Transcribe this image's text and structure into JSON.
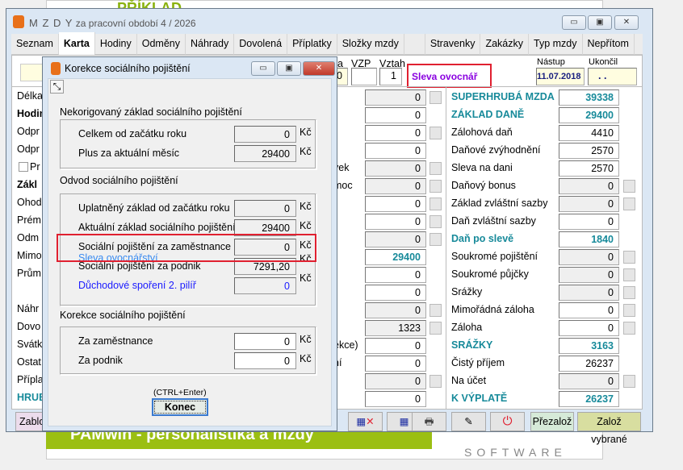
{
  "background": {
    "title": "PŘÍKLAD",
    "banner": "PAMwin - personalistika a mzdy",
    "logo_text": "SOFTWARE"
  },
  "window": {
    "app": "M Z D Y",
    "period": "za pracovní období  4 / 2026",
    "min": "▭",
    "max": "▣",
    "close": "✕"
  },
  "tabs": [
    "Seznam",
    "Karta",
    "Hodiny",
    "Odměny",
    "Náhrady",
    "Dovolená",
    "Příplatky",
    "Složky mzdy",
    "",
    "Stravenky",
    "Zakázky",
    "Typ mzdy",
    "Nepřítom"
  ],
  "header": {
    "col_a": "a",
    "col_a_val": "0",
    "vzp_label": "VZP",
    "vzp_val": "",
    "vztah_label": "Vztah",
    "vztah_val": "1",
    "sleva": "Sleva ovocnář",
    "nastup_label": "Nástup",
    "nastup_val": "11.07.2018",
    "ukoncil_label": "Ukončil",
    "ukoncil_val": ". ."
  },
  "left_labels": [
    "Délka",
    "Hodin",
    "Odpr",
    "Odpr",
    "Pr",
    "Zákl",
    "Ohod",
    "Prém",
    "Odm",
    "Mimo",
    "Prům",
    "",
    "Náhr",
    "Dovo",
    "Svátk",
    "Ostat",
    "Přípla",
    "HRUB"
  ],
  "middle": [
    {
      "label": "",
      "value": "0",
      "gray": true,
      "dots": true
    },
    {
      "label": "",
      "value": "0",
      "gray": false,
      "dots": false
    },
    {
      "label": "",
      "value": "0",
      "gray": false,
      "dots": true
    },
    {
      "label": "",
      "value": "0",
      "gray": false,
      "dots": false
    },
    {
      "label": "vek",
      "value": "0",
      "gray": true,
      "dots": true
    },
    {
      "label": "moc",
      "value": "0",
      "gray": true,
      "dots": true
    },
    {
      "label": "",
      "value": "0",
      "gray": false,
      "dots": true
    },
    {
      "label": "",
      "value": "0",
      "gray": false,
      "dots": true
    },
    {
      "label": "",
      "value": "0",
      "gray": true,
      "dots": true
    },
    {
      "label": "",
      "value": "29400",
      "gray": false,
      "dots": false,
      "teal": true
    },
    {
      "label": "",
      "value": "0",
      "gray": false,
      "dots": false
    },
    {
      "label": "",
      "value": "0",
      "gray": false,
      "dots": false
    },
    {
      "label": "",
      "value": "0",
      "gray": true,
      "dots": true
    },
    {
      "label": "",
      "value": "1323",
      "gray": true,
      "dots": true
    },
    {
      "label": "ekce)",
      "value": "0",
      "gray": false,
      "dots": false
    },
    {
      "label": "ní",
      "value": "0",
      "gray": false,
      "dots": false
    },
    {
      "label": "",
      "value": "0",
      "gray": true,
      "dots": true
    },
    {
      "label": "",
      "value": "0",
      "gray": false,
      "dots": false
    }
  ],
  "right": [
    {
      "label": "SUPERHRUBÁ MZDA",
      "value": "39338",
      "teal": true
    },
    {
      "label": "ZÁKLAD DANĚ",
      "value": "29400",
      "teal": true
    },
    {
      "label": "Zálohová daň",
      "value": "4410"
    },
    {
      "label": "Daňové zvýhodnění",
      "value": "2570"
    },
    {
      "label": "Sleva na dani",
      "value": "2570"
    },
    {
      "label": "Daňový bonus",
      "value": "0",
      "gray": true,
      "dots": true
    },
    {
      "label": "Základ zvláštní sazby",
      "value": "0",
      "gray": true,
      "dots": true
    },
    {
      "label": "Daň zvláštní sazby",
      "value": "0"
    },
    {
      "label": "Daň po slevě",
      "value": "1840",
      "teal": true
    },
    {
      "label": "Soukromé pojištění",
      "value": "0",
      "gray": true,
      "dots": true
    },
    {
      "label": "Soukromé půjčky",
      "value": "0",
      "gray": true,
      "dots": true
    },
    {
      "label": "Srážky",
      "value": "0",
      "gray": true,
      "dots": true
    },
    {
      "label": "Mimořádná záloha",
      "value": "0",
      "dots": true
    },
    {
      "label": "Záloha",
      "value": "0",
      "dots": true
    },
    {
      "label": "SRÁŽKY",
      "value": "3163",
      "teal": true
    },
    {
      "label": "Čistý příjem",
      "value": "26237"
    },
    {
      "label": "Na účet",
      "value": "0",
      "gray": true,
      "dots": true
    },
    {
      "label": "K VÝPLATĚ",
      "value": "26237",
      "teal": true
    }
  ],
  "bottom": {
    "zablok": "Zablokovat",
    "prezaloz": "Přezalož",
    "zaloz_vybrane": "Založ vybrané"
  },
  "dialog": {
    "title": "Korekce sociálního pojištění",
    "resize": "⤡",
    "group1": {
      "title": "Nekorigovaný základ sociálního pojištění",
      "rows": [
        {
          "label": "Celkem od začátku roku",
          "value": "0"
        },
        {
          "label": "Plus za aktuální měsíc",
          "value": "29400"
        }
      ]
    },
    "group2": {
      "title": "Odvod sociálního pojištění",
      "rows": [
        {
          "label": "Uplatněný základ od začátku roku",
          "value": "0"
        },
        {
          "label": "Aktuální základ sociálního pojištění",
          "value": "29400"
        },
        {
          "label": "Sociální pojištění za zaměstnance",
          "value": "0",
          "note": "Sleva ovocnářství"
        },
        {
          "label": "Sociální pojištění za podnik",
          "value": "7291,20"
        },
        {
          "label": "Důchodové spoření 2. pilíř",
          "value": "0",
          "link": true
        }
      ]
    },
    "group3": {
      "title": "Korekce sociálního pojištění",
      "rows": [
        {
          "label": "Za zaměstnance",
          "value": "0"
        },
        {
          "label": "Za podnik",
          "value": "0"
        }
      ]
    },
    "currency": "Kč",
    "shortcut": "(CTRL+Enter)",
    "close_label": "Konec"
  },
  "colors": {
    "teal": "#178a9a",
    "highlight": "#e02030",
    "link": "#1a1aff",
    "note": "#3a8af0",
    "sleva": "#8a00e0"
  }
}
